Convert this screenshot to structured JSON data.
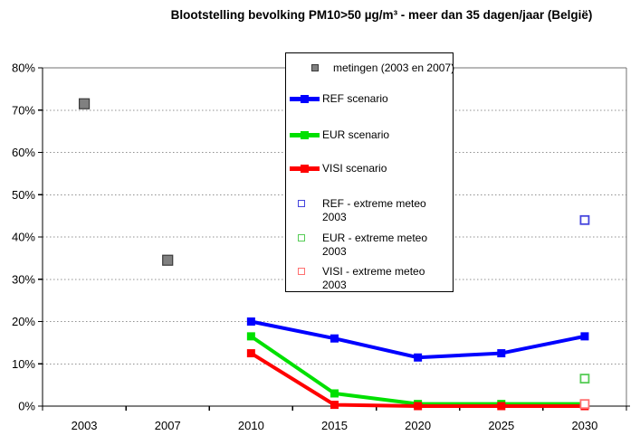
{
  "title": "Blootstelling bevolking PM10>50 µg/m³ - meer dan 35 dagen/jaar (België)",
  "axes": {
    "y_tick_labels": [
      "0%",
      "10%",
      "20%",
      "30%",
      "40%",
      "50%",
      "60%",
      "70%",
      "80%"
    ],
    "x_tick_labels": [
      "2003",
      "2007",
      "2010",
      "2015",
      "2020",
      "2025",
      "2030"
    ]
  },
  "legend": {
    "items": [
      {
        "label": "metingen (2003 en 2007)",
        "swatch": "measurement",
        "color": "#808080"
      },
      {
        "label": "REF scenario",
        "swatch": "line",
        "color": "#0000FF"
      },
      {
        "label": "EUR scenario",
        "swatch": "line",
        "color": "#00E000"
      },
      {
        "label": "VISI scenario",
        "swatch": "line",
        "color": "#FF0000"
      },
      {
        "label": "REF - extreme meteo\n2003",
        "swatch": "open",
        "color": "#4444DD"
      },
      {
        "label": "EUR - extreme meteo\n2003",
        "swatch": "open",
        "color": "#55CC55"
      },
      {
        "label": "VISI - extreme meteo\n2003",
        "swatch": "open",
        "color": "#FF7070"
      }
    ]
  },
  "chart_data": {
    "type": "line",
    "title": "Blootstelling bevolking PM10>50 µg/m³ - meer dan 35 dagen/jaar (België)",
    "categories": [
      "2003",
      "2007",
      "2010",
      "2015",
      "2020",
      "2025",
      "2030"
    ],
    "xlabel": "",
    "ylabel": "",
    "ylim": [
      0,
      80
    ],
    "ytick_step": 10,
    "ytick_format": "percent",
    "grid": "horizontal-dotted",
    "legend_position": "inside-top-center",
    "series": [
      {
        "name": "metingen (2003 en 2007)",
        "display": "scatter",
        "marker": "filled-square",
        "color": "#808080",
        "marker_border": "#3a3a3a",
        "values": [
          71.5,
          34.5,
          null,
          null,
          null,
          null,
          null
        ]
      },
      {
        "name": "REF scenario",
        "display": "line",
        "marker": "filled-square",
        "color": "#0000FF",
        "values": [
          null,
          null,
          20,
          16,
          11.5,
          12.5,
          16.5
        ]
      },
      {
        "name": "EUR scenario",
        "display": "line",
        "marker": "filled-square",
        "color": "#00E000",
        "values": [
          null,
          null,
          16.5,
          3,
          0.5,
          0.5,
          0.5
        ]
      },
      {
        "name": "VISI scenario",
        "display": "line",
        "marker": "filled-square",
        "color": "#FF0000",
        "values": [
          null,
          null,
          12.5,
          0.3,
          0,
          0,
          0
        ]
      },
      {
        "name": "REF - extreme meteo 2003",
        "display": "scatter",
        "marker": "open-square",
        "color": "#4444DD",
        "values": [
          null,
          null,
          null,
          null,
          null,
          null,
          44
        ]
      },
      {
        "name": "EUR - extreme meteo 2003",
        "display": "scatter",
        "marker": "open-square",
        "color": "#55CC55",
        "values": [
          null,
          null,
          null,
          null,
          null,
          null,
          6.5
        ]
      },
      {
        "name": "VISI - extreme meteo 2003",
        "display": "scatter",
        "marker": "open-square",
        "color": "#FF7070",
        "values": [
          null,
          null,
          null,
          null,
          null,
          null,
          0.5
        ]
      }
    ]
  }
}
